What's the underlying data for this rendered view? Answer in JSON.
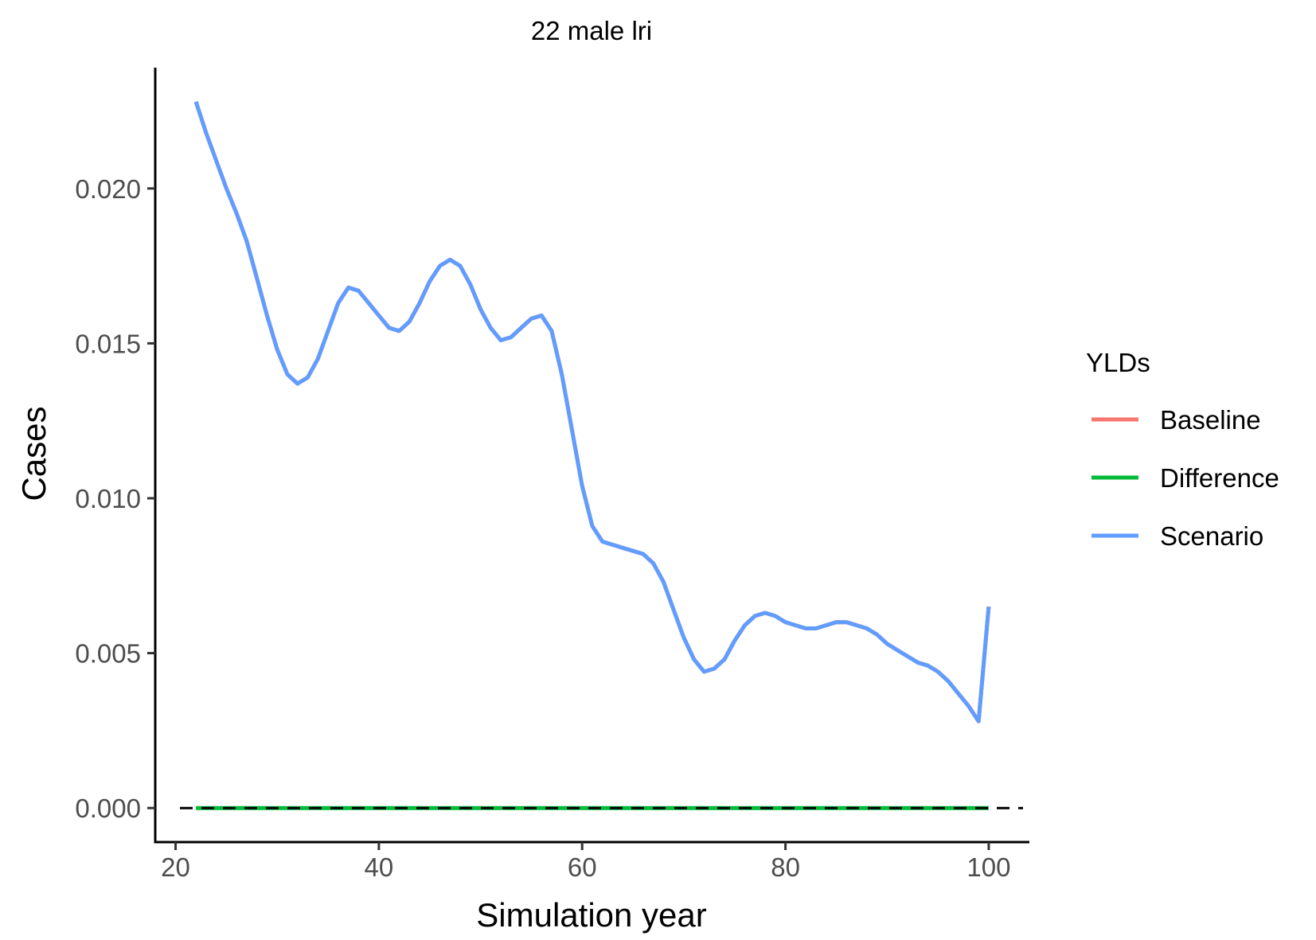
{
  "chart_data": {
    "type": "line",
    "title": "22 male lri",
    "xlabel": "Simulation year",
    "ylabel": "Cases",
    "xlim": [
      18,
      104
    ],
    "ylim": [
      -0.0011,
      0.0239
    ],
    "x_ticks": [
      20,
      40,
      60,
      80,
      100
    ],
    "x_tick_labels": [
      "20",
      "40",
      "60",
      "80",
      "100"
    ],
    "y_ticks": [
      0.0,
      0.005,
      0.01,
      0.015,
      0.02
    ],
    "y_tick_labels": [
      "0.000",
      "0.005",
      "0.010",
      "0.015",
      "0.020"
    ],
    "grid": false,
    "reference_line": {
      "y": 0,
      "style": "dashed",
      "color": "#000000"
    },
    "legend": {
      "title": "YLDs",
      "position": "right",
      "entries": [
        {
          "label": "Baseline",
          "color": "#F8766D"
        },
        {
          "label": "Difference",
          "color": "#00BA38"
        },
        {
          "label": "Scenario",
          "color": "#619CFF"
        }
      ]
    },
    "x": [
      22,
      23,
      24,
      25,
      26,
      27,
      28,
      29,
      30,
      31,
      32,
      33,
      34,
      35,
      36,
      37,
      38,
      39,
      40,
      41,
      42,
      43,
      44,
      45,
      46,
      47,
      48,
      49,
      50,
      51,
      52,
      53,
      54,
      55,
      56,
      57,
      58,
      59,
      60,
      61,
      62,
      63,
      64,
      65,
      66,
      67,
      68,
      69,
      70,
      71,
      72,
      73,
      74,
      75,
      76,
      77,
      78,
      79,
      80,
      81,
      82,
      83,
      84,
      85,
      86,
      87,
      88,
      89,
      90,
      91,
      92,
      93,
      94,
      95,
      96,
      97,
      98,
      99,
      100
    ],
    "series": [
      {
        "name": "Baseline",
        "color": "#F8766D",
        "values": [
          0.0228,
          0.0218,
          0.0209,
          0.02,
          0.0192,
          0.0183,
          0.0171,
          0.0159,
          0.0148,
          0.014,
          0.0137,
          0.0139,
          0.0145,
          0.0154,
          0.0163,
          0.0168,
          0.0167,
          0.0163,
          0.0159,
          0.0155,
          0.0154,
          0.0157,
          0.0163,
          0.017,
          0.0175,
          0.0177,
          0.0175,
          0.0169,
          0.0161,
          0.0155,
          0.0151,
          0.0152,
          0.0155,
          0.0158,
          0.0159,
          0.0154,
          0.014,
          0.0122,
          0.0104,
          0.0091,
          0.0086,
          0.0085,
          0.0084,
          0.0083,
          0.0082,
          0.0079,
          0.0073,
          0.0064,
          0.0055,
          0.0048,
          0.0044,
          0.0045,
          0.0048,
          0.0054,
          0.0059,
          0.0062,
          0.0063,
          0.0062,
          0.006,
          0.0059,
          0.0058,
          0.0058,
          0.0059,
          0.006,
          0.006,
          0.0059,
          0.0058,
          0.0056,
          0.0053,
          0.0051,
          0.0049,
          0.0047,
          0.0046,
          0.0044,
          0.0041,
          0.0037,
          0.0033,
          0.0028,
          0.0065
        ]
      },
      {
        "name": "Difference",
        "color": "#00BA38",
        "values": [
          0,
          0,
          0,
          0,
          0,
          0,
          0,
          0,
          0,
          0,
          0,
          0,
          0,
          0,
          0,
          0,
          0,
          0,
          0,
          0,
          0,
          0,
          0,
          0,
          0,
          0,
          0,
          0,
          0,
          0,
          0,
          0,
          0,
          0,
          0,
          0,
          0,
          0,
          0,
          0,
          0,
          0,
          0,
          0,
          0,
          0,
          0,
          0,
          0,
          0,
          0,
          0,
          0,
          0,
          0,
          0,
          0,
          0,
          0,
          0,
          0,
          0,
          0,
          0,
          0,
          0,
          0,
          0,
          0,
          0,
          0,
          0,
          0,
          0,
          0,
          0,
          0,
          0,
          0
        ]
      },
      {
        "name": "Scenario",
        "color": "#619CFF",
        "values": [
          0.0228,
          0.0218,
          0.0209,
          0.02,
          0.0192,
          0.0183,
          0.0171,
          0.0159,
          0.0148,
          0.014,
          0.0137,
          0.0139,
          0.0145,
          0.0154,
          0.0163,
          0.0168,
          0.0167,
          0.0163,
          0.0159,
          0.0155,
          0.0154,
          0.0157,
          0.0163,
          0.017,
          0.0175,
          0.0177,
          0.0175,
          0.0169,
          0.0161,
          0.0155,
          0.0151,
          0.0152,
          0.0155,
          0.0158,
          0.0159,
          0.0154,
          0.014,
          0.0122,
          0.0104,
          0.0091,
          0.0086,
          0.0085,
          0.0084,
          0.0083,
          0.0082,
          0.0079,
          0.0073,
          0.0064,
          0.0055,
          0.0048,
          0.0044,
          0.0045,
          0.0048,
          0.0054,
          0.0059,
          0.0062,
          0.0063,
          0.0062,
          0.006,
          0.0059,
          0.0058,
          0.0058,
          0.0059,
          0.006,
          0.006,
          0.0059,
          0.0058,
          0.0056,
          0.0053,
          0.0051,
          0.0049,
          0.0047,
          0.0046,
          0.0044,
          0.0041,
          0.0037,
          0.0033,
          0.0028,
          0.0065
        ]
      }
    ]
  }
}
